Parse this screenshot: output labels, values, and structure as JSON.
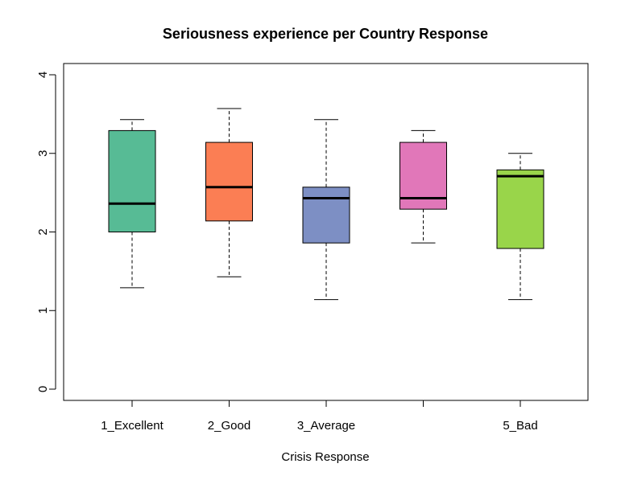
{
  "chart_data": {
    "type": "boxplot",
    "title": "Seriousness experience per Country Response",
    "xlabel": "Crisis Response",
    "ylabel": "",
    "ylim": [
      0,
      4
    ],
    "yticks": [
      0,
      1,
      2,
      3,
      4
    ],
    "categories": [
      "1_Excellent",
      "2_Good",
      "3_Average",
      "",
      "5_Bad"
    ],
    "boxes": [
      {
        "whisker_low": 1.29,
        "q1": 2.0,
        "median": 2.36,
        "q3": 3.29,
        "whisker_high": 3.43,
        "color": "#57BB95"
      },
      {
        "whisker_low": 1.43,
        "q1": 2.14,
        "median": 2.57,
        "q3": 3.14,
        "whisker_high": 3.57,
        "color": "#FB7E54"
      },
      {
        "whisker_low": 1.14,
        "q1": 1.86,
        "median": 2.43,
        "q3": 2.57,
        "whisker_high": 3.43,
        "color": "#7D8FC4"
      },
      {
        "whisker_low": 1.86,
        "q1": 2.29,
        "median": 2.43,
        "q3": 3.14,
        "whisker_high": 3.29,
        "color": "#E177B9"
      },
      {
        "whisker_low": 1.14,
        "q1": 1.79,
        "median": 2.71,
        "q3": 2.79,
        "whisker_high": 3.0,
        "color": "#99D54A"
      }
    ],
    "grid": false,
    "legend": "none"
  }
}
